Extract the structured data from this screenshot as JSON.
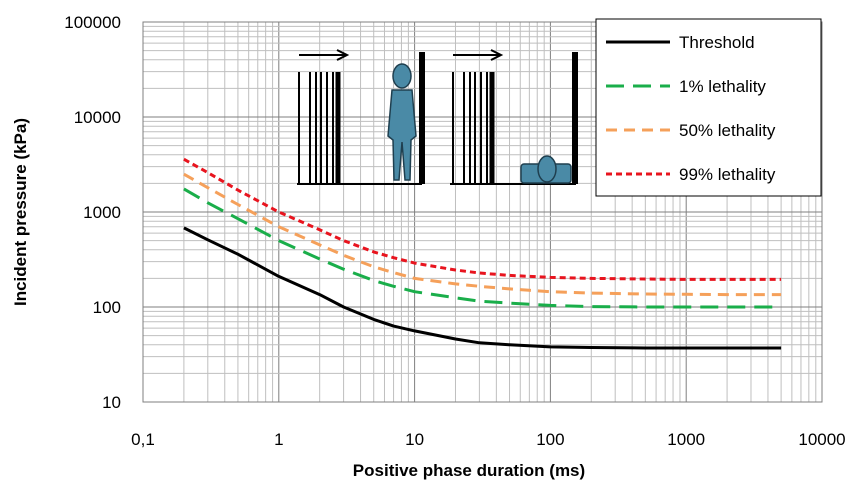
{
  "chart_data": {
    "type": "line",
    "xlabel": "Positive phase duration (ms)",
    "ylabel": "Incident pressure (kPa)",
    "x_scale": "log",
    "y_scale": "log",
    "xlim": [
      0.1,
      10000
    ],
    "ylim": [
      10,
      100000
    ],
    "grid": true,
    "legend_position": "top-right",
    "x_tick_labels": [
      "0,1",
      "1",
      "10",
      "100",
      "1000",
      "10000"
    ],
    "y_tick_labels": [
      "10",
      "100",
      "1000",
      "10000",
      "100000"
    ],
    "series": [
      {
        "name": "Threshold",
        "color": "#000000",
        "dash": "solid",
        "x": [
          0.2,
          0.3,
          0.5,
          1,
          2,
          3,
          5,
          7,
          10,
          20,
          30,
          50,
          100,
          200,
          500,
          1000,
          2000,
          5000
        ],
        "y": [
          680,
          510,
          360,
          210,
          135,
          100,
          74,
          63,
          56,
          46,
          42,
          40,
          38,
          37.5,
          37,
          37,
          37,
          37
        ]
      },
      {
        "name": "1% lethality",
        "color": "#1aae4a",
        "dash": "long-dash",
        "x": [
          0.2,
          0.3,
          0.5,
          1,
          2,
          3,
          5,
          7,
          10,
          20,
          30,
          50,
          100,
          200,
          500,
          1000,
          2000,
          5000
        ],
        "y": [
          1750,
          1250,
          850,
          500,
          320,
          250,
          190,
          165,
          145,
          125,
          115,
          110,
          104,
          101,
          100,
          100,
          100,
          100
        ]
      },
      {
        "name": "50% lethality",
        "color": "#f5a05a",
        "dash": "dash",
        "x": [
          0.2,
          0.3,
          0.5,
          1,
          2,
          3,
          5,
          7,
          10,
          20,
          30,
          50,
          100,
          200,
          500,
          1000,
          2000,
          5000
        ],
        "y": [
          2500,
          1800,
          1200,
          700,
          450,
          350,
          265,
          230,
          200,
          175,
          165,
          155,
          145,
          140,
          137,
          136,
          135,
          135
        ]
      },
      {
        "name": "99% lethality",
        "color": "#e8141e",
        "dash": "short-dash",
        "x": [
          0.2,
          0.3,
          0.5,
          1,
          2,
          3,
          5,
          7,
          10,
          20,
          30,
          50,
          100,
          200,
          500,
          1000,
          2000,
          5000
        ],
        "y": [
          3600,
          2600,
          1700,
          1000,
          650,
          500,
          380,
          330,
          290,
          245,
          228,
          215,
          205,
          200,
          197,
          195,
          195,
          195
        ]
      }
    ],
    "illustration_color": "#4a8aa6"
  }
}
